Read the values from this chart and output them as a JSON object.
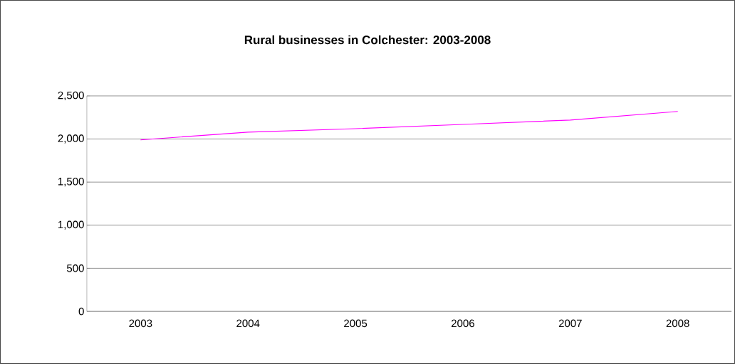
{
  "chart_data": {
    "type": "line",
    "title": "Rural businesses in Colchester: 2003-2008",
    "categories": [
      "2003",
      "2004",
      "2005",
      "2006",
      "2007",
      "2008"
    ],
    "values": [
      1990,
      2080,
      2120,
      2170,
      2220,
      2320
    ],
    "color": "#ff00ff",
    "ylim": [
      0,
      2500
    ],
    "yticks": [
      {
        "value": 0,
        "label": "0"
      },
      {
        "value": 500,
        "label": "500"
      },
      {
        "value": 1000,
        "label": "1,000"
      },
      {
        "value": 1500,
        "label": "1,500"
      },
      {
        "value": 2000,
        "label": "2,000"
      },
      {
        "value": 2500,
        "label": "2,500"
      }
    ],
    "grid": "y",
    "marker": "none",
    "line_style": "solid"
  }
}
